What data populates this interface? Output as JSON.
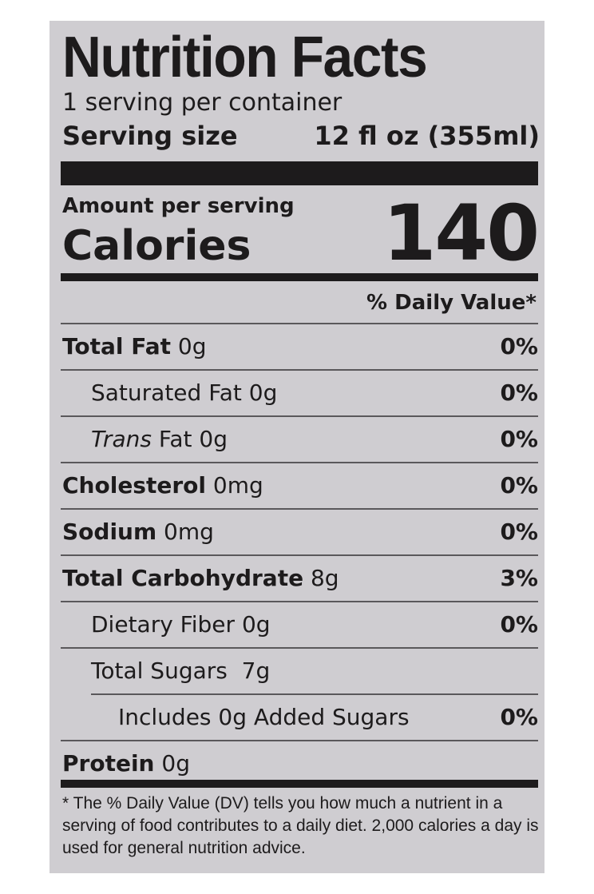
{
  "title": "Nutrition Facts",
  "servings_per_container": "1 serving per container",
  "serving_size": {
    "label": "Serving size",
    "value": "12 fl oz (355ml)"
  },
  "amount_per_serving": "Amount per serving",
  "calories": {
    "label": "Calories",
    "value": "140"
  },
  "daily_value_header": "% Daily Value*",
  "nutrients": [
    {
      "name": "Total Fat",
      "amount": " 0g",
      "dv": "0%"
    },
    {
      "name": "Saturated Fat 0g",
      "dv": "0%"
    },
    {
      "italic": "Trans",
      "name": " Fat 0g",
      "dv": "0%"
    },
    {
      "name": "Cholesterol",
      "amount": " 0mg",
      "dv": "0%"
    },
    {
      "name": "Sodium",
      "amount": " 0mg",
      "dv": "0%"
    },
    {
      "name": "Total Carbohydrate",
      "amount": " 8g",
      "dv": "3%"
    },
    {
      "name": "Dietary Fiber 0g",
      "dv": "0%"
    },
    {
      "name": "Total Sugars  7g"
    },
    {
      "name": "Includes 0g Added Sugars",
      "dv": "0%"
    },
    {
      "name": "Protein",
      "amount": " 0g"
    }
  ],
  "footnote": "* The % Daily Value (DV) tells you how much a nutrient in a serving of food contributes to a daily diet. 2,000 calories a day is used for general nutrition advice."
}
